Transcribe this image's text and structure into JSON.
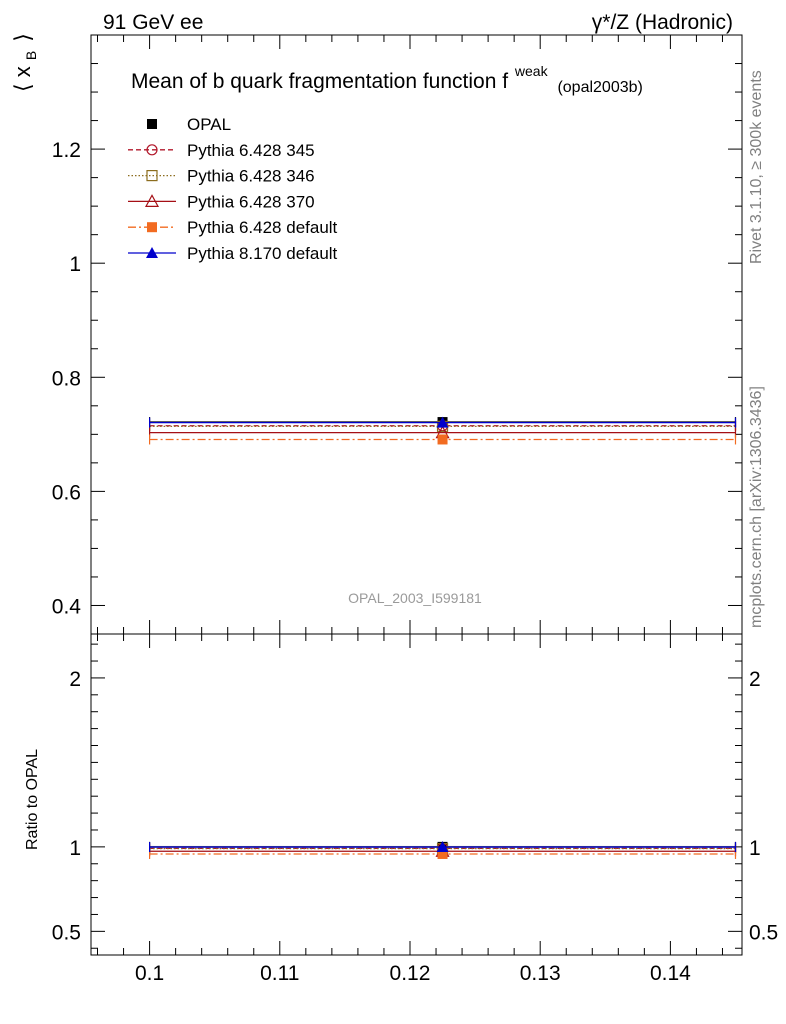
{
  "header": {
    "energy": "91 GeV ee",
    "process": "γ*/Z (Hadronic)"
  },
  "side_labels": {
    "rivet": "Rivet 3.1.10, ≥ 300k events",
    "mcplots": "mcplots.cern.ch [arXiv:1306.3436]"
  },
  "chart_data": [
    {
      "type": "line",
      "panel": "main",
      "title": "Mean of b quark fragmentation function f",
      "title_sup": "weak",
      "title_sub": "(opal2003b)",
      "ylabel": "⟨ x",
      "ylabel_sub": "B",
      "ylabel_close": "⟩",
      "watermark": "OPAL_2003_I599181",
      "xlim": [
        0.0955,
        0.1455
      ],
      "ylim": [
        0.35,
        1.4
      ],
      "yticks": [
        0.4,
        0.6,
        0.8,
        1,
        1.2
      ],
      "ytick_labels": [
        "0.4",
        "0.6",
        "0.8",
        "1",
        "1.2"
      ],
      "grid": false,
      "legend_position": "top-left",
      "series": [
        {
          "name": "OPAL",
          "x": [
            0.1225
          ],
          "xerr": [
            0.0225,
            0.0225
          ],
          "y": [
            0.7215
          ],
          "yerr": [
            0.004
          ],
          "color": "#000000",
          "marker": "filled-square",
          "dash": "none"
        },
        {
          "name": "Pythia 6.428 345",
          "x": [
            0.1225
          ],
          "xerr": [
            0.0225,
            0.0225
          ],
          "y": [
            0.715
          ],
          "color": "#b2182b",
          "marker": "open-circle",
          "dash": "5,3"
        },
        {
          "name": "Pythia 6.428 346",
          "x": [
            0.1225
          ],
          "xerr": [
            0.0225,
            0.0225
          ],
          "y": [
            0.714
          ],
          "color": "#8c6d1f",
          "marker": "open-square",
          "dash": "1.5,2"
        },
        {
          "name": "Pythia 6.428 370",
          "x": [
            0.1225
          ],
          "xerr": [
            0.0225,
            0.0225
          ],
          "y": [
            0.703
          ],
          "color": "#a50f15",
          "marker": "open-triangle",
          "dash": "none"
        },
        {
          "name": "Pythia 6.428 default",
          "x": [
            0.1225
          ],
          "xerr": [
            0.0225,
            0.0225
          ],
          "y": [
            0.691
          ],
          "color": "#f26b21",
          "marker": "filled-square",
          "dash": "8,3,2,3"
        },
        {
          "name": "Pythia 8.170 default",
          "x": [
            0.1225
          ],
          "xerr": [
            0.0225,
            0.0225
          ],
          "y": [
            0.7205
          ],
          "color": "#0000cc",
          "marker": "filled-triangle",
          "dash": "none"
        }
      ]
    },
    {
      "type": "line",
      "panel": "ratio",
      "ylabel": "Ratio to OPAL",
      "xlim": [
        0.0955,
        0.1455
      ],
      "ylim": [
        0.36,
        2.26
      ],
      "yticks": [
        0.5,
        1,
        2
      ],
      "ytick_labels": [
        "0.5",
        "1",
        "2"
      ],
      "xticks": [
        0.1,
        0.11,
        0.12,
        0.13,
        0.14
      ],
      "xtick_labels": [
        "0.1",
        "0.11",
        "0.12",
        "0.13",
        "0.14"
      ],
      "grid": false,
      "series": [
        {
          "name": "OPAL",
          "x": [
            0.1225
          ],
          "xerr": [
            0.0225,
            0.0225
          ],
          "y": [
            1.0
          ],
          "band": [
            0.994,
            1.006
          ],
          "color": "#000000",
          "marker": "filled-square",
          "dash": "none"
        },
        {
          "name": "Pythia 6.428 345",
          "x": [
            0.1225
          ],
          "xerr": [
            0.0225,
            0.0225
          ],
          "y": [
            0.991
          ],
          "color": "#b2182b",
          "marker": "open-circle",
          "dash": "5,3"
        },
        {
          "name": "Pythia 6.428 346",
          "x": [
            0.1225
          ],
          "xerr": [
            0.0225,
            0.0225
          ],
          "y": [
            0.99
          ],
          "color": "#8c6d1f",
          "marker": "open-square",
          "dash": "1.5,2"
        },
        {
          "name": "Pythia 6.428 370",
          "x": [
            0.1225
          ],
          "xerr": [
            0.0225,
            0.0225
          ],
          "y": [
            0.974
          ],
          "color": "#a50f15",
          "marker": "open-triangle",
          "dash": "none"
        },
        {
          "name": "Pythia 6.428 default",
          "x": [
            0.1225
          ],
          "xerr": [
            0.0225,
            0.0225
          ],
          "y": [
            0.958
          ],
          "color": "#f26b21",
          "marker": "filled-square",
          "dash": "8,3,2,3"
        },
        {
          "name": "Pythia 8.170 default",
          "x": [
            0.1225
          ],
          "xerr": [
            0.0225,
            0.0225
          ],
          "y": [
            0.999
          ],
          "color": "#0000cc",
          "marker": "filled-triangle",
          "dash": "none"
        }
      ]
    }
  ]
}
